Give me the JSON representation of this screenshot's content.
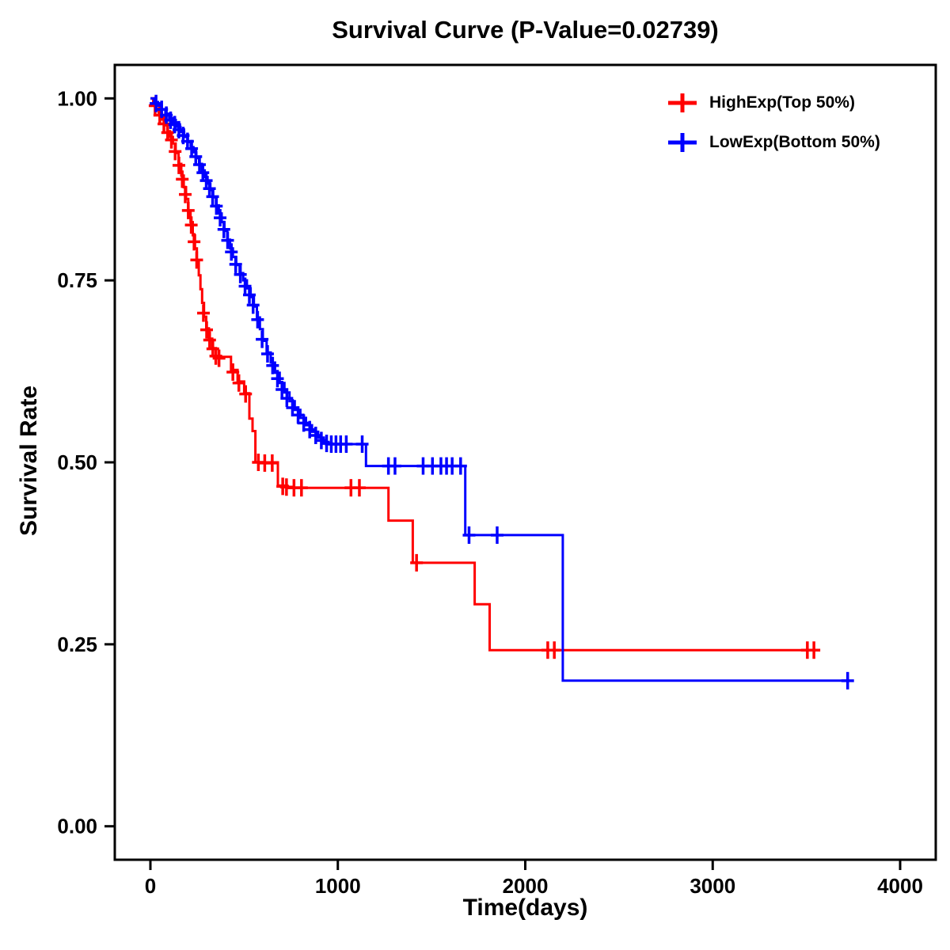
{
  "title": "Survival Curve (P-Value=0.02739)",
  "chart_data": {
    "type": "line",
    "subtype": "kaplan-meier-step",
    "title": "Survival Curve (P-Value=0.02739)",
    "xlabel": "Time(days)",
    "ylabel": "Survival Rate",
    "xlim": [
      -190,
      4190
    ],
    "ylim": [
      -0.046,
      1.046
    ],
    "grid": false,
    "legend_position": "top-right",
    "xticks": [
      {
        "value": 0,
        "label": "0"
      },
      {
        "value": 1000,
        "label": "1000"
      },
      {
        "value": 2000,
        "label": "2000"
      },
      {
        "value": 3000,
        "label": "3000"
      },
      {
        "value": 4000,
        "label": "4000"
      }
    ],
    "yticks": [
      {
        "value": 0,
        "label": "0.00"
      },
      {
        "value": 0.25,
        "label": "0.25"
      },
      {
        "value": 0.5,
        "label": "0.50"
      },
      {
        "value": 0.75,
        "label": "0.75"
      },
      {
        "value": 1,
        "label": "1.00"
      }
    ],
    "legend": [
      {
        "label": "HighExp(Top 50%)",
        "color": "#FF0000"
      },
      {
        "label": "LowExp(Bottom 50%)",
        "color": "#0000FF"
      }
    ],
    "series": [
      {
        "name": "HighExp(Top 50%)",
        "color": "#FF0000",
        "steps": [
          [
            0,
            1.0
          ],
          [
            15,
            0.993
          ],
          [
            30,
            0.986
          ],
          [
            45,
            0.979
          ],
          [
            60,
            0.971
          ],
          [
            75,
            0.963
          ],
          [
            90,
            0.955
          ],
          [
            105,
            0.947
          ],
          [
            120,
            0.938
          ],
          [
            135,
            0.925
          ],
          [
            150,
            0.91
          ],
          [
            165,
            0.894
          ],
          [
            178,
            0.878
          ],
          [
            190,
            0.862
          ],
          [
            202,
            0.846
          ],
          [
            214,
            0.83
          ],
          [
            226,
            0.812
          ],
          [
            238,
            0.794
          ],
          [
            248,
            0.776
          ],
          [
            258,
            0.757
          ],
          [
            267,
            0.738
          ],
          [
            276,
            0.719
          ],
          [
            286,
            0.7
          ],
          [
            298,
            0.684
          ],
          [
            312,
            0.67
          ],
          [
            330,
            0.657
          ],
          [
            350,
            0.645
          ],
          [
            430,
            0.627
          ],
          [
            465,
            0.611
          ],
          [
            500,
            0.595
          ],
          [
            528,
            0.56
          ],
          [
            545,
            0.543
          ],
          [
            560,
            0.5
          ],
          [
            680,
            0.468
          ],
          [
            730,
            0.465
          ],
          [
            1270,
            0.42
          ],
          [
            1400,
            0.362
          ],
          [
            1730,
            0.305
          ],
          [
            1810,
            0.242
          ],
          [
            3560,
            0.242
          ]
        ],
        "censor_marks": [
          [
            25,
            0.99
          ],
          [
            50,
            0.977
          ],
          [
            72,
            0.965
          ],
          [
            92,
            0.953
          ],
          [
            112,
            0.943
          ],
          [
            132,
            0.927
          ],
          [
            152,
            0.908
          ],
          [
            170,
            0.889
          ],
          [
            186,
            0.868
          ],
          [
            202,
            0.846
          ],
          [
            218,
            0.826
          ],
          [
            233,
            0.803
          ],
          [
            247,
            0.778
          ],
          [
            283,
            0.705
          ],
          [
            300,
            0.682
          ],
          [
            316,
            0.668
          ],
          [
            333,
            0.656
          ],
          [
            349,
            0.646
          ],
          [
            366,
            0.643
          ],
          [
            440,
            0.624
          ],
          [
            472,
            0.609
          ],
          [
            508,
            0.594
          ],
          [
            576,
            0.5
          ],
          [
            610,
            0.499
          ],
          [
            650,
            0.499
          ],
          [
            706,
            0.467
          ],
          [
            726,
            0.466
          ],
          [
            766,
            0.465
          ],
          [
            806,
            0.465
          ],
          [
            1070,
            0.465
          ],
          [
            1115,
            0.465
          ],
          [
            1420,
            0.362
          ],
          [
            2120,
            0.242
          ],
          [
            2155,
            0.242
          ],
          [
            3505,
            0.242
          ],
          [
            3540,
            0.242
          ]
        ]
      },
      {
        "name": "LowExp(Bottom 50%)",
        "color": "#0000FF",
        "steps": [
          [
            0,
            1.0
          ],
          [
            20,
            0.995
          ],
          [
            40,
            0.99
          ],
          [
            60,
            0.985
          ],
          [
            80,
            0.979
          ],
          [
            100,
            0.973
          ],
          [
            120,
            0.967
          ],
          [
            140,
            0.961
          ],
          [
            160,
            0.954
          ],
          [
            180,
            0.947
          ],
          [
            200,
            0.94
          ],
          [
            215,
            0.933
          ],
          [
            230,
            0.926
          ],
          [
            245,
            0.918
          ],
          [
            260,
            0.91
          ],
          [
            275,
            0.901
          ],
          [
            290,
            0.892
          ],
          [
            305,
            0.883
          ],
          [
            320,
            0.874
          ],
          [
            335,
            0.864
          ],
          [
            350,
            0.853
          ],
          [
            365,
            0.842
          ],
          [
            380,
            0.83
          ],
          [
            395,
            0.818
          ],
          [
            410,
            0.806
          ],
          [
            425,
            0.794
          ],
          [
            440,
            0.782
          ],
          [
            458,
            0.771
          ],
          [
            476,
            0.76
          ],
          [
            495,
            0.75
          ],
          [
            515,
            0.739
          ],
          [
            535,
            0.727
          ],
          [
            552,
            0.714
          ],
          [
            568,
            0.699
          ],
          [
            584,
            0.683
          ],
          [
            600,
            0.667
          ],
          [
            620,
            0.651
          ],
          [
            642,
            0.637
          ],
          [
            665,
            0.623
          ],
          [
            690,
            0.609
          ],
          [
            715,
            0.596
          ],
          [
            742,
            0.584
          ],
          [
            770,
            0.572
          ],
          [
            800,
            0.561
          ],
          [
            830,
            0.551
          ],
          [
            862,
            0.542
          ],
          [
            895,
            0.534
          ],
          [
            925,
            0.528
          ],
          [
            950,
            0.525
          ],
          [
            1150,
            0.495
          ],
          [
            1680,
            0.4
          ],
          [
            2200,
            0.2
          ],
          [
            3730,
            0.2
          ]
        ],
        "censor_marks": [
          [
            30,
            0.993
          ],
          [
            60,
            0.985
          ],
          [
            85,
            0.977
          ],
          [
            108,
            0.97
          ],
          [
            130,
            0.964
          ],
          [
            152,
            0.957
          ],
          [
            175,
            0.949
          ],
          [
            198,
            0.941
          ],
          [
            220,
            0.931
          ],
          [
            242,
            0.92
          ],
          [
            262,
            0.909
          ],
          [
            280,
            0.898
          ],
          [
            298,
            0.887
          ],
          [
            315,
            0.876
          ],
          [
            332,
            0.865
          ],
          [
            352,
            0.852
          ],
          [
            372,
            0.836
          ],
          [
            392,
            0.82
          ],
          [
            412,
            0.805
          ],
          [
            432,
            0.789
          ],
          [
            455,
            0.772
          ],
          [
            480,
            0.758
          ],
          [
            505,
            0.742
          ],
          [
            528,
            0.73
          ],
          [
            548,
            0.716
          ],
          [
            572,
            0.696
          ],
          [
            596,
            0.669
          ],
          [
            625,
            0.649
          ],
          [
            652,
            0.633
          ],
          [
            678,
            0.615
          ],
          [
            702,
            0.6
          ],
          [
            728,
            0.588
          ],
          [
            758,
            0.575
          ],
          [
            788,
            0.565
          ],
          [
            818,
            0.554
          ],
          [
            850,
            0.545
          ],
          [
            882,
            0.537
          ],
          [
            912,
            0.53
          ],
          [
            940,
            0.526
          ],
          [
            965,
            0.525
          ],
          [
            990,
            0.525
          ],
          [
            1015,
            0.525
          ],
          [
            1045,
            0.525
          ],
          [
            1130,
            0.525
          ],
          [
            1270,
            0.495
          ],
          [
            1305,
            0.495
          ],
          [
            1455,
            0.495
          ],
          [
            1505,
            0.495
          ],
          [
            1550,
            0.495
          ],
          [
            1580,
            0.495
          ],
          [
            1610,
            0.495
          ],
          [
            1655,
            0.495
          ],
          [
            1700,
            0.4
          ],
          [
            1850,
            0.4
          ],
          [
            3720,
            0.2
          ]
        ]
      }
    ]
  }
}
